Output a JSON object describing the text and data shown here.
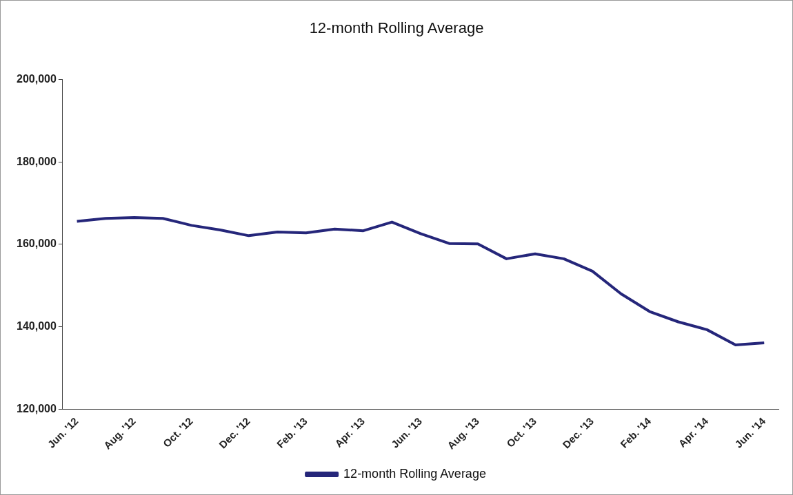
{
  "chart_data": {
    "type": "line",
    "title": "12-month Rolling Average",
    "categories": [
      "Jun. '12",
      null,
      "Aug. '12",
      null,
      "Oct. '12",
      null,
      "Dec. '12",
      null,
      "Feb. '13",
      null,
      "Apr. '13",
      null,
      "Jun. '13",
      null,
      "Aug. '13",
      null,
      "Oct. '13",
      null,
      "Dec. '13",
      null,
      "Feb. '14",
      null,
      "Apr. '14",
      null,
      "Jun. '14"
    ],
    "series": [
      {
        "name": "12-month Rolling Average",
        "color": "#25267a",
        "values": [
          165600,
          166300,
          166500,
          166300,
          164600,
          163500,
          162100,
          163000,
          162800,
          163700,
          163300,
          165400,
          162600,
          160200,
          160100,
          156500,
          157700,
          156500,
          153500,
          148000,
          143700,
          141200,
          139300,
          135600,
          136100
        ]
      }
    ],
    "ylim": [
      120000,
      200000
    ],
    "yticks": [
      {
        "value": 120000,
        "label": "120,000"
      },
      {
        "value": 140000,
        "label": "140,000"
      },
      {
        "value": 160000,
        "label": "160,000"
      },
      {
        "value": 180000,
        "label": "180,000"
      },
      {
        "value": 200000,
        "label": "200,000"
      }
    ],
    "grid": false,
    "legend": "bottom",
    "marker": "none",
    "line_style": "solid"
  }
}
